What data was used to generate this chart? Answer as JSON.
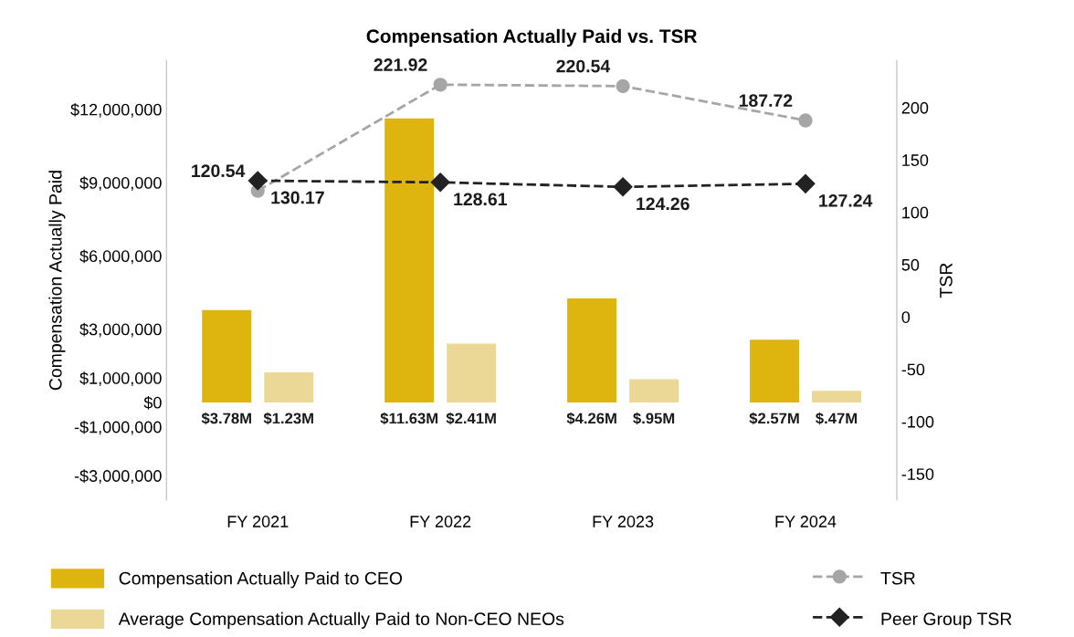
{
  "chart_data": {
    "type": "bar",
    "title": "Compensation Actually Paid vs. TSR",
    "ylabel": "Compensation Actually Paid",
    "y2label": "TSR",
    "categories": [
      "FY 2021",
      "FY 2022",
      "FY 2023",
      "FY 2024"
    ],
    "series": [
      {
        "name": "Compensation Actually Paid to CEO",
        "color": "#deb40f",
        "values": [
          3780000,
          11630000,
          4260000,
          2570000
        ],
        "value_labels": [
          "$3.78M",
          "$11.63M",
          "$4.26M",
          "$2.57M"
        ]
      },
      {
        "name": "Average Compensation Actually Paid to Non-CEO NEOs",
        "color": "#ecd896",
        "values": [
          1230000,
          2410000,
          950000,
          470000
        ],
        "value_labels": [
          "$1.23M",
          "$2.41M",
          "$.95M",
          "$.47M"
        ]
      },
      {
        "name": "TSR",
        "type": "line",
        "axis": "y2",
        "color": "#a6a6a6",
        "marker": "circle",
        "line_style": "dashed",
        "values": [
          120.54,
          221.92,
          220.54,
          187.72
        ],
        "data_labels": true
      },
      {
        "name": "Peer Group TSR",
        "type": "line",
        "axis": "y2",
        "color": "#222222",
        "marker": "diamond",
        "line_style": "dashed",
        "values": [
          130.17,
          128.61,
          124.26,
          127.24
        ],
        "data_labels": true
      }
    ],
    "ylim": [
      -4000000,
      14000000
    ],
    "yticks": [
      {
        "value": 12000000,
        "label": "$12,000,000"
      },
      {
        "value": 9000000,
        "label": "$9,000,000"
      },
      {
        "value": 6000000,
        "label": "$6,000,000"
      },
      {
        "value": 3000000,
        "label": "$3,000,000"
      },
      {
        "value": 1000000,
        "label": "$1,000,000"
      },
      {
        "value": 0,
        "label": "$0"
      },
      {
        "value": -1000000,
        "label": "-$1,000,000"
      },
      {
        "value": -3000000,
        "label": "-$3,000,000"
      }
    ],
    "y2lim": [
      -175,
      245
    ],
    "y2ticks": [
      200,
      150,
      100,
      50,
      0,
      -50,
      -100,
      -150
    ],
    "grid": false,
    "legend": "bottom"
  }
}
